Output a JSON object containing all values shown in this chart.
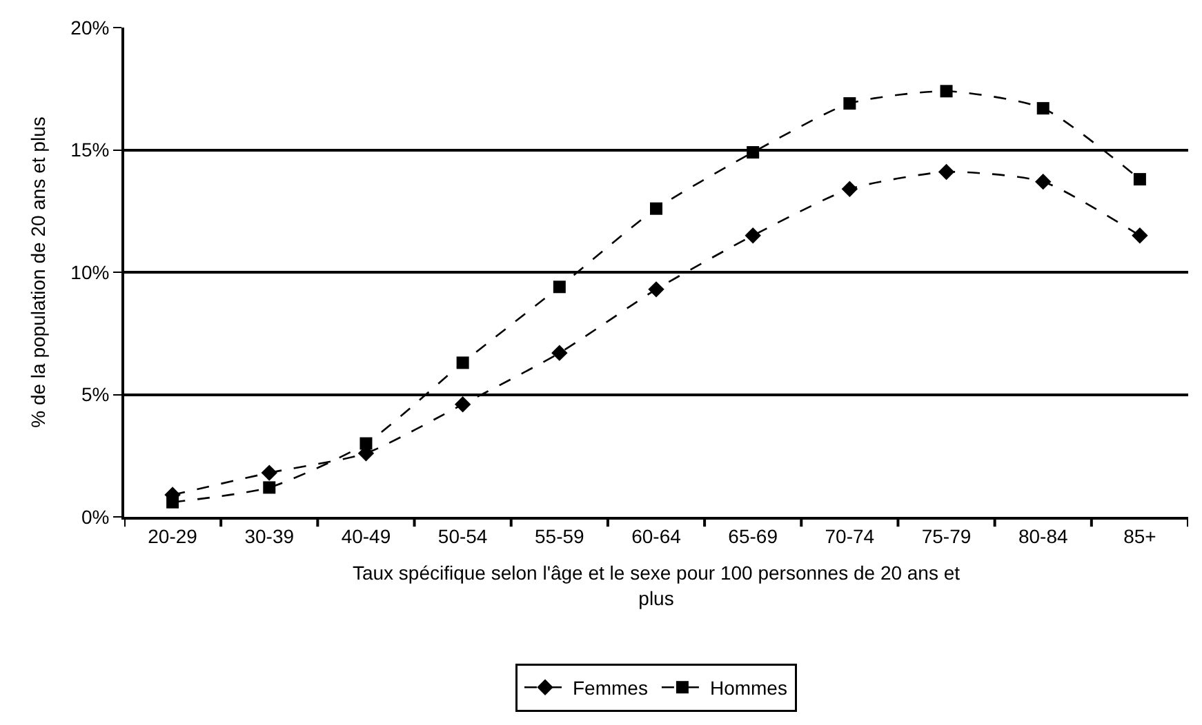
{
  "chart_data": {
    "type": "line",
    "xlabel": "Taux spécifique selon l'âge et le sexe pour 100 personnes de 20 ans et plus",
    "ylabel": "% de la population de 20 ans et plus",
    "categories": [
      "20-29",
      "30-39",
      "40-49",
      "50-54",
      "55-59",
      "60-64",
      "65-69",
      "70-74",
      "75-79",
      "80-84",
      "85+"
    ],
    "series": [
      {
        "name": "Femmes",
        "color": "#000000",
        "marker": "diamond",
        "values": [
          0.9,
          1.8,
          2.6,
          4.6,
          6.7,
          9.3,
          11.5,
          13.4,
          14.1,
          13.7,
          11.5
        ]
      },
      {
        "name": "Hommes",
        "color": "#000000",
        "marker": "square",
        "values": [
          0.6,
          1.2,
          3.0,
          6.3,
          9.4,
          12.6,
          14.9,
          16.9,
          17.4,
          16.7,
          13.8
        ]
      }
    ],
    "ylim": [
      0,
      20
    ],
    "yticks": [
      {
        "value": 0,
        "label": "0%"
      },
      {
        "value": 5,
        "label": "5%"
      },
      {
        "value": 10,
        "label": "10%"
      },
      {
        "value": 15,
        "label": "15%"
      },
      {
        "value": 20,
        "label": "20%"
      }
    ],
    "grid": "y",
    "legend": "bottom",
    "line_style": "dashed"
  }
}
